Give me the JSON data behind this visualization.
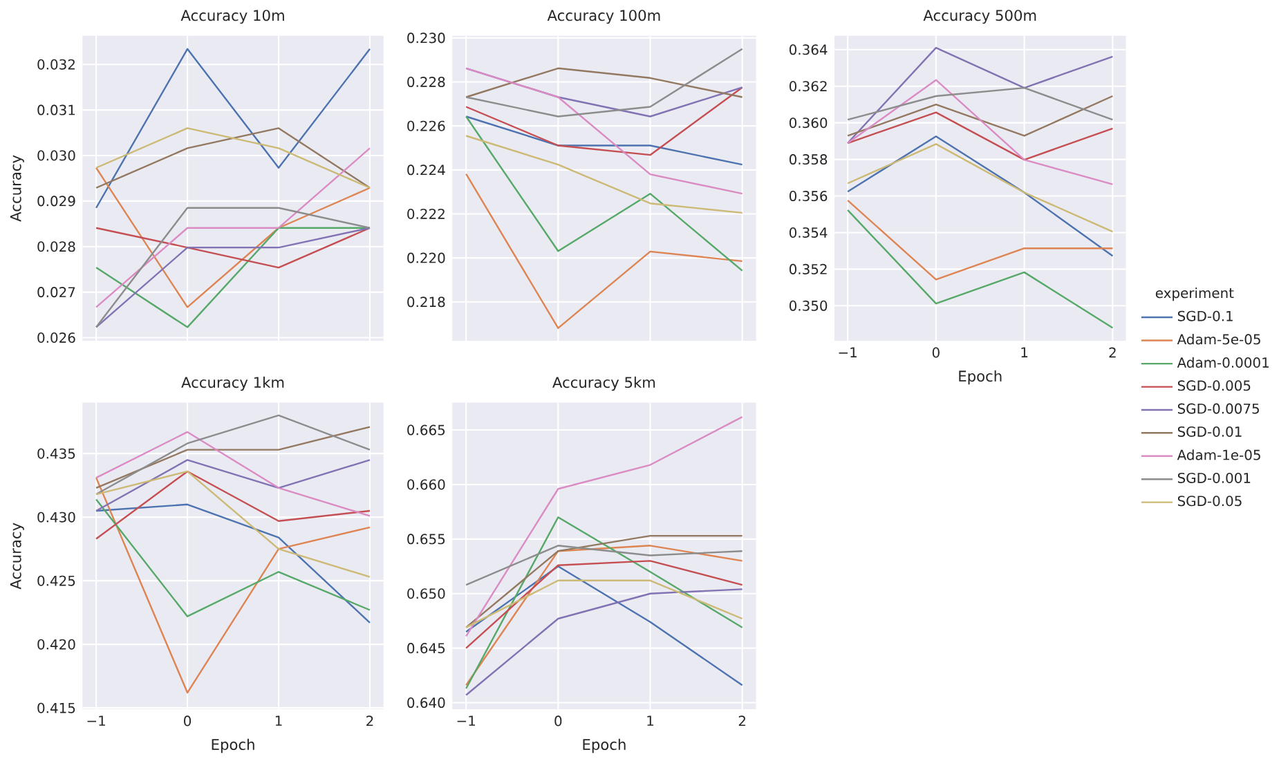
{
  "chart_data": [
    {
      "type": "line",
      "title": "Accuracy 10m",
      "ylabel": "Accuracy",
      "x": [
        -1,
        0,
        1,
        2
      ],
      "xlim": [
        -1.15,
        2.15
      ],
      "ylim": [
        0.02593,
        0.03263
      ],
      "xticks": [
        {
          "value": -1,
          "label": null
        },
        {
          "value": 0,
          "label": null
        },
        {
          "value": 1,
          "label": null
        },
        {
          "value": 2,
          "label": null
        }
      ],
      "yticks": [
        0.026,
        0.027,
        0.028,
        0.029,
        {
          "value": 0.03,
          "label": "0.030"
        },
        0.031,
        0.032
      ],
      "grid": true,
      "tick_labels": "y",
      "series": [
        {
          "color": "#4c72b0",
          "values": [
            0.02885,
            0.03234,
            0.02973,
            0.03234
          ]
        },
        {
          "color": "#dd8452",
          "values": [
            0.02973,
            0.02667,
            0.02841,
            0.02929
          ]
        },
        {
          "color": "#55a868",
          "values": [
            0.02754,
            0.02623,
            0.02841,
            0.02841
          ]
        },
        {
          "color": "#c44e52",
          "values": [
            0.02841,
            0.02798,
            0.02754,
            0.02841
          ]
        },
        {
          "color": "#8172b3",
          "values": [
            0.02623,
            0.02798,
            0.02798,
            0.02841
          ]
        },
        {
          "color": "#937860",
          "values": [
            0.02929,
            0.03016,
            0.0306,
            0.02929
          ]
        },
        {
          "color": "#da8bc3",
          "values": [
            0.02667,
            0.02841,
            0.02841,
            0.03016
          ]
        },
        {
          "color": "#8c8c8c",
          "values": [
            0.02623,
            0.02885,
            0.02885,
            0.02841
          ]
        },
        {
          "color": "#ccb974",
          "values": [
            0.02973,
            0.0306,
            0.03016,
            0.02929
          ]
        }
      ]
    },
    {
      "type": "line",
      "title": "Accuracy 100m",
      "x": [
        -1,
        0,
        1,
        2
      ],
      "xlim": [
        -1.15,
        2.15
      ],
      "ylim": [
        0.21623,
        0.2301
      ],
      "xticks": [
        {
          "value": -1,
          "label": null
        },
        {
          "value": 0,
          "label": null
        },
        {
          "value": 1,
          "label": null
        },
        {
          "value": 2,
          "label": null
        }
      ],
      "yticks": [
        0.218,
        {
          "value": 0.22,
          "label": "0.220"
        },
        0.222,
        0.224,
        0.226,
        0.228,
        {
          "value": 0.23,
          "label": "0.230"
        }
      ],
      "grid": true,
      "tick_labels": "y",
      "series": [
        {
          "color": "#4c72b0",
          "values": [
            0.22643,
            0.22511,
            0.22511,
            0.22424
          ]
        },
        {
          "color": "#dd8452",
          "values": [
            0.22382,
            0.21681,
            0.22029,
            0.21985
          ]
        },
        {
          "color": "#55a868",
          "values": [
            0.22643,
            0.22031,
            0.22292,
            0.21942
          ]
        },
        {
          "color": "#c44e52",
          "values": [
            0.22687,
            0.22511,
            0.22468,
            0.22775
          ]
        },
        {
          "color": "#8172b3",
          "values": [
            0.22862,
            0.22731,
            0.22643,
            0.22775
          ]
        },
        {
          "color": "#937860",
          "values": [
            0.22731,
            0.22862,
            0.22818,
            0.22731
          ]
        },
        {
          "color": "#da8bc3",
          "values": [
            0.22862,
            0.22731,
            0.2238,
            0.22292
          ]
        },
        {
          "color": "#8c8c8c",
          "values": [
            0.22731,
            0.22643,
            0.22687,
            0.2295
          ]
        },
        {
          "color": "#ccb974",
          "values": [
            0.22555,
            0.22424,
            0.22248,
            0.22205
          ]
        }
      ]
    },
    {
      "type": "line",
      "title": "Accuracy 500m",
      "xlabel": "Epoch",
      "legend_title": "experiment",
      "legend": "right",
      "x": [
        -1,
        0,
        1,
        2
      ],
      "xlim": [
        -1.15,
        2.15
      ],
      "ylim": [
        0.34808,
        0.36476
      ],
      "xticks": [
        {
          "value": -1,
          "label": "−1"
        },
        0,
        1,
        2
      ],
      "yticks": [
        {
          "value": 0.35,
          "label": "0.350"
        },
        0.352,
        0.354,
        0.356,
        0.358,
        {
          "value": 0.36,
          "label": "0.360"
        },
        0.362,
        0.364
      ],
      "grid": true,
      "series": [
        {
          "name": "SGD-0.1",
          "color": "#4c72b0",
          "values": [
            0.35624,
            0.35926,
            0.35619,
            0.35272
          ]
        },
        {
          "name": "Adam-5e-05",
          "color": "#dd8452",
          "values": [
            0.35576,
            0.35143,
            0.35314,
            0.35314
          ]
        },
        {
          "name": "Adam-0.0001",
          "color": "#55a868",
          "values": [
            0.35523,
            0.35012,
            0.35183,
            0.34879
          ]
        },
        {
          "name": "SGD-0.005",
          "color": "#c44e52",
          "values": [
            0.35889,
            0.36057,
            0.35798,
            0.35969
          ]
        },
        {
          "name": "SGD-0.0075",
          "color": "#8172b3",
          "values": [
            0.35889,
            0.3641,
            0.36191,
            0.36362
          ]
        },
        {
          "name": "SGD-0.01",
          "color": "#937860",
          "values": [
            0.35929,
            0.361,
            0.35929,
            0.36146
          ]
        },
        {
          "name": "Adam-1e-05",
          "color": "#da8bc3",
          "values": [
            0.35889,
            0.36234,
            0.35798,
            0.35664
          ]
        },
        {
          "name": "SGD-0.001",
          "color": "#8c8c8c",
          "values": [
            0.36017,
            0.36146,
            0.36191,
            0.36017
          ]
        },
        {
          "name": "SGD-0.05",
          "color": "#ccb974",
          "values": [
            0.35669,
            0.35884,
            0.35619,
            0.35405
          ]
        }
      ]
    },
    {
      "type": "line",
      "title": "Accuracy 1km",
      "xlabel": "Epoch",
      "ylabel": "Accuracy",
      "x": [
        -1,
        0,
        1,
        2
      ],
      "xlim": [
        -1.15,
        2.15
      ],
      "ylim": [
        0.4149,
        0.439
      ],
      "xticks": [
        {
          "value": -1,
          "label": "−1"
        },
        0,
        1,
        2
      ],
      "yticks": [
        0.415,
        {
          "value": 0.42,
          "label": "0.420"
        },
        0.425,
        {
          "value": 0.43,
          "label": "0.430"
        },
        0.435
      ],
      "grid": true,
      "series": [
        {
          "color": "#4c72b0",
          "values": [
            0.4305,
            0.431,
            0.4284,
            0.4217
          ]
        },
        {
          "color": "#dd8452",
          "values": [
            0.4331,
            0.4162,
            0.4275,
            0.4292
          ]
        },
        {
          "color": "#55a868",
          "values": [
            0.4314,
            0.4222,
            0.4257,
            0.4227
          ]
        },
        {
          "color": "#c44e52",
          "values": [
            0.4283,
            0.4336,
            0.4297,
            0.4305
          ]
        },
        {
          "color": "#8172b3",
          "values": [
            0.4305,
            0.4345,
            0.4323,
            0.4345
          ]
        },
        {
          "color": "#937860",
          "values": [
            0.4323,
            0.4353,
            0.4353,
            0.4371
          ]
        },
        {
          "color": "#da8bc3",
          "values": [
            0.4331,
            0.4367,
            0.4323,
            0.4301
          ]
        },
        {
          "color": "#8c8c8c",
          "values": [
            0.4318,
            0.4358,
            0.438,
            0.4353
          ]
        },
        {
          "color": "#ccb974",
          "values": [
            0.4318,
            0.4336,
            0.4275,
            0.4253
          ]
        }
      ]
    },
    {
      "type": "line",
      "title": "Accuracy 5km",
      "xlabel": "Epoch",
      "x": [
        -1,
        0,
        1,
        2
      ],
      "xlim": [
        -1.15,
        2.15
      ],
      "ylim": [
        0.6394,
        0.6675
      ],
      "xticks": [
        {
          "value": -1,
          "label": "−1"
        },
        0,
        1,
        2
      ],
      "yticks": [
        {
          "value": 0.64,
          "label": "0.640"
        },
        0.645,
        {
          "value": 0.65,
          "label": "0.650"
        },
        0.655,
        {
          "value": 0.66,
          "label": "0.660"
        },
        0.665
      ],
      "grid": true,
      "series": [
        {
          "color": "#4c72b0",
          "values": [
            0.6465,
            0.6525,
            0.6474,
            0.6416
          ]
        },
        {
          "color": "#dd8452",
          "values": [
            0.6416,
            0.6539,
            0.6544,
            0.653
          ]
        },
        {
          "color": "#55a868",
          "values": [
            0.6413,
            0.657,
            0.652,
            0.6469
          ]
        },
        {
          "color": "#c44e52",
          "values": [
            0.645,
            0.6526,
            0.653,
            0.6508
          ]
        },
        {
          "color": "#8172b3",
          "values": [
            0.6407,
            0.6477,
            0.65,
            0.6504
          ]
        },
        {
          "color": "#937860",
          "values": [
            0.6469,
            0.6539,
            0.6553,
            0.6553
          ]
        },
        {
          "color": "#da8bc3",
          "values": [
            0.6461,
            0.6596,
            0.6618,
            0.6662
          ]
        },
        {
          "color": "#8c8c8c",
          "values": [
            0.6508,
            0.6544,
            0.6535,
            0.6539
          ]
        },
        {
          "color": "#ccb974",
          "values": [
            0.6469,
            0.6512,
            0.6512,
            0.6477
          ]
        }
      ]
    }
  ]
}
